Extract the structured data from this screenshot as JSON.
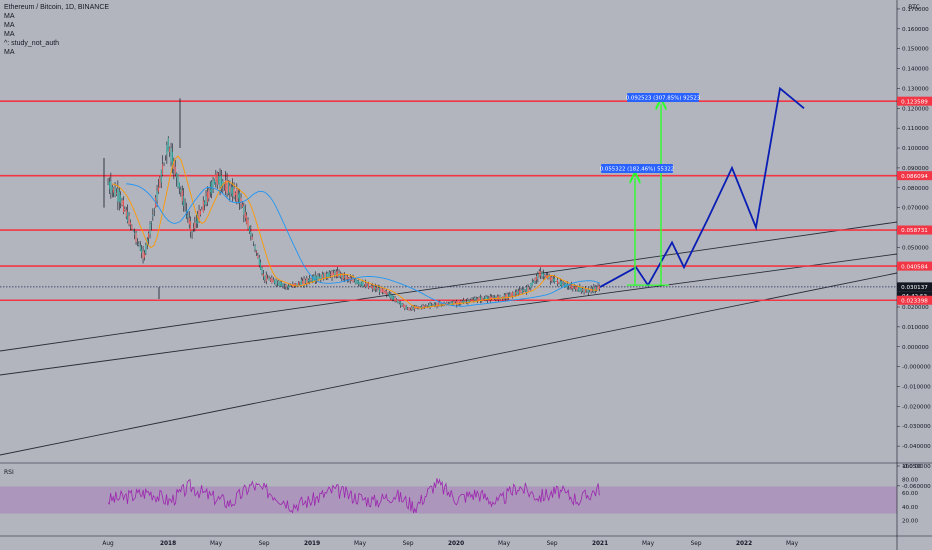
{
  "header": {
    "symbol_title": "Ethereum / Bitcoin, 1D, BINANCE",
    "indicators": [
      "MA",
      "MA",
      "MA",
      "^: study_not_auth",
      "MA"
    ]
  },
  "price_scale": {
    "unit": "BTC",
    "ticks": [
      "0.170000",
      "0.160000",
      "0.150000",
      "0.140000",
      "0.130000",
      "0.120000",
      "0.110000",
      "0.100000",
      "0.090000",
      "0.080000",
      "0.070000",
      "0.060000",
      "0.050000",
      "0.040000",
      "0.030000",
      "0.020000",
      "0.010000",
      "0.000000",
      "-0.000000",
      "-0.010000",
      "-0.020000",
      "-0.030000",
      "-0.040000",
      "-0.050000",
      "-0.060000"
    ]
  },
  "time_axis": {
    "labels": [
      "Aug",
      "2018",
      "May",
      "Sep",
      "2019",
      "May",
      "Sep",
      "2020",
      "May",
      "Sep",
      "2021",
      "May",
      "Sep",
      "2022",
      "May"
    ]
  },
  "level_badges": [
    {
      "value": "0.123589",
      "color": "#f23645"
    },
    {
      "value": "0.086094",
      "color": "#f23645"
    },
    {
      "value": "0.058731",
      "color": "#f23645"
    },
    {
      "value": "0.040584",
      "color": "#f23645"
    },
    {
      "value": "0.030137",
      "color": "#131722"
    },
    {
      "value": "04:42:53",
      "color": "#131722"
    },
    {
      "value": "0.023398",
      "color": "#f23645"
    }
  ],
  "measure_labels": [
    {
      "text": "0.092523 (307.85%) 92523"
    },
    {
      "text": "0.055322 (182.46%) 55322"
    }
  ],
  "rsi": {
    "label": "RSI",
    "ticks": [
      "100.00",
      "80.00",
      "60.00",
      "40.00",
      "20.00"
    ],
    "band": [
      30,
      70
    ],
    "color": "#9c27b0"
  },
  "colors": {
    "background": "#b2b5be",
    "level_line": "#f23645",
    "projection": "#0a1eb4",
    "arrow": "#2cff2c",
    "ma_orange": "#ff9800",
    "ma_blue": "#2196f3",
    "candle": "#131722"
  },
  "chart_data": {
    "type": "line",
    "title": "Ethereum / Bitcoin, 1D, BINANCE",
    "y_unit": "BTC",
    "ylim": [
      -0.06,
      0.17
    ],
    "horizontal_levels": [
      0.123589,
      0.086094,
      0.058731,
      0.040584,
      0.023398
    ],
    "last_price": 0.030137,
    "series": [
      {
        "name": "",
        "x": [
          "2017-08",
          "2017-09",
          "2017-11",
          "2018-01",
          "2018-02",
          "2018-03",
          "2018-05",
          "2018-07",
          "2018-09",
          "2018-11",
          "2019-01",
          "2019-03",
          "2019-05",
          "2019-07",
          "2019-09",
          "2019-11",
          "2020-01",
          "2020-03",
          "2020-05",
          "2020-07",
          "2020-08",
          "2020-10",
          "2020-12",
          "2021-01"
        ],
        "values": [
          0.082,
          0.075,
          0.045,
          0.102,
          0.08,
          0.058,
          0.085,
          0.075,
          0.035,
          0.03,
          0.034,
          0.037,
          0.032,
          0.028,
          0.019,
          0.021,
          0.022,
          0.024,
          0.025,
          0.029,
          0.037,
          0.031,
          0.028,
          0.03
        ]
      },
      {
        "name": "",
        "x": [
          "2021-01",
          "2021-04",
          "2021-05",
          "2021-07",
          "2021-08",
          "2021-10",
          "2021-12",
          "2022-02",
          "2022-04",
          "2022-06"
        ],
        "values": [
          0.03,
          0.04,
          0.031,
          0.0525,
          0.04,
          0.0645,
          0.09,
          0.06,
          0.13,
          0.12
        ]
      }
    ],
    "rsi": [
      50,
      55,
      62,
      48,
      70,
      55,
      45,
      72,
      60,
      42,
      50,
      65,
      55,
      48,
      58,
      40,
      75,
      52,
      60,
      45,
      70,
      55,
      62,
      50,
      68
    ]
  }
}
